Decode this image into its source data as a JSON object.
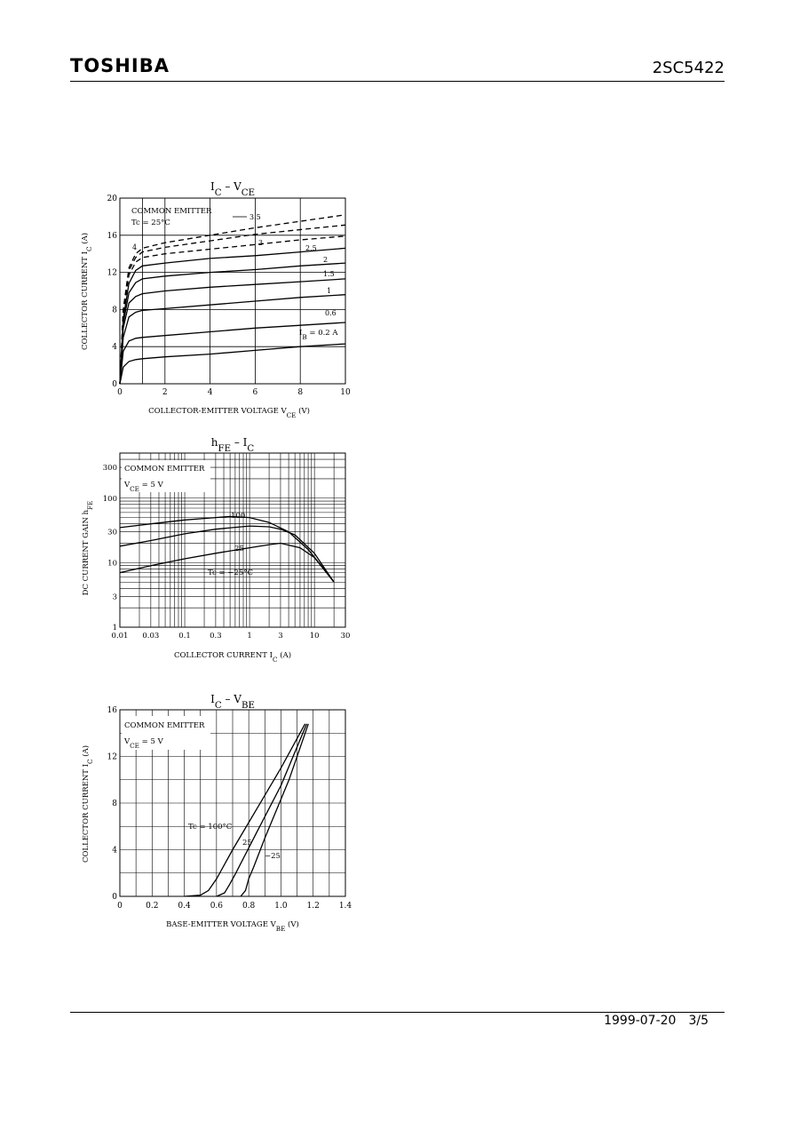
{
  "header": {
    "brand": "TOSHIBA",
    "part_number": "2SC5422"
  },
  "footer": {
    "date": "1999-07-20",
    "page": "3/5"
  },
  "chart_data": [
    {
      "type": "line",
      "title": "I_C – V_CE",
      "title_main": "I",
      "title_sub": "C",
      "title_mid": " − V",
      "title_sub2": "CE",
      "xlabel": "COLLECTOR-EMITTER VOLTAGE   V_CE   (V)",
      "ylabel": "COLLECTOR CURRENT   I_C   (A)",
      "xlim": [
        0,
        10
      ],
      "ylim": [
        0,
        20
      ],
      "xticks": [
        "0",
        "2",
        "4",
        "6",
        "8",
        "10"
      ],
      "yticks": [
        "0",
        "4",
        "8",
        "12",
        "16",
        "20"
      ],
      "grid": true,
      "annotations": [
        "COMMON EMITTER",
        "Tc = 25°C"
      ],
      "series": [
        {
          "name": "3.5",
          "dashed": true,
          "x": [
            0,
            0.15,
            0.4,
            0.7,
            1.0,
            2,
            4,
            6,
            8,
            10
          ],
          "y": [
            0,
            8,
            12.5,
            14,
            14.6,
            15.2,
            16.0,
            16.8,
            17.5,
            18.2
          ]
        },
        {
          "name": "3",
          "dashed": true,
          "x": [
            0,
            0.15,
            0.4,
            0.7,
            1.0,
            2,
            4,
            6,
            8,
            10
          ],
          "y": [
            0,
            7.8,
            12.2,
            13.6,
            14.2,
            14.7,
            15.4,
            16.1,
            16.6,
            17.1
          ]
        },
        {
          "name": "2.5",
          "dashed": true,
          "x": [
            0,
            0.15,
            0.4,
            0.7,
            1.0,
            2,
            4,
            6,
            8,
            10
          ],
          "y": [
            0,
            7.5,
            11.7,
            13.1,
            13.6,
            14.0,
            14.5,
            15.0,
            15.5,
            15.9
          ]
        },
        {
          "name": "2",
          "x": [
            0,
            0.15,
            0.4,
            0.7,
            1.0,
            2,
            4,
            6,
            8,
            10
          ],
          "y": [
            0,
            7,
            10.8,
            12.2,
            12.7,
            13.0,
            13.5,
            13.8,
            14.2,
            14.6
          ]
        },
        {
          "name": "1.5",
          "x": [
            0,
            0.15,
            0.4,
            0.7,
            1.0,
            2,
            4,
            6,
            8,
            10
          ],
          "y": [
            0,
            6.5,
            9.8,
            10.9,
            11.3,
            11.6,
            12.0,
            12.3,
            12.7,
            13.0
          ]
        },
        {
          "name": "1",
          "x": [
            0,
            0.15,
            0.4,
            0.7,
            1.0,
            2,
            4,
            6,
            8,
            10
          ],
          "y": [
            0,
            6,
            8.7,
            9.4,
            9.7,
            10.0,
            10.4,
            10.7,
            11.0,
            11.3
          ]
        },
        {
          "name": "0.6",
          "x": [
            0,
            0.15,
            0.4,
            0.7,
            1.0,
            2,
            4,
            6,
            8,
            10
          ],
          "y": [
            0,
            5,
            7.2,
            7.7,
            7.9,
            8.1,
            8.5,
            8.9,
            9.3,
            9.6
          ]
        },
        {
          "name": "I_B = 0.2 A",
          "x": [
            0,
            0.15,
            0.4,
            0.7,
            1.0,
            2,
            4,
            6,
            8,
            10
          ],
          "y": [
            0,
            3.5,
            4.6,
            4.9,
            5.0,
            5.2,
            5.6,
            6.0,
            6.3,
            6.6
          ]
        },
        {
          "name": "",
          "x": [
            0,
            0.15,
            0.4,
            0.7,
            1.0,
            2,
            4,
            6,
            8,
            10
          ],
          "y": [
            0,
            1.8,
            2.4,
            2.6,
            2.7,
            2.9,
            3.2,
            3.6,
            4.0,
            4.3
          ]
        }
      ],
      "labels": [
        "4",
        "3.5",
        "3",
        "2.5",
        "2",
        "1.5",
        "1",
        "0.6"
      ]
    },
    {
      "type": "line",
      "title": "h_FE – I_C",
      "xlabel": "COLLECTOR CURRENT   I_C   (A)",
      "ylabel": "DC CURRENT GAIN   h_FE",
      "xscale": "log",
      "yscale": "log",
      "xlim": [
        0.01,
        30
      ],
      "ylim": [
        1,
        500
      ],
      "xticks": [
        "0.01",
        "0.03",
        "0.1",
        "0.3",
        "1",
        "3",
        "10",
        "30"
      ],
      "yticks": [
        "1",
        "3",
        "10",
        "30",
        "100",
        "300"
      ],
      "grid": true,
      "annotations": [
        "COMMON EMITTER",
        "V_CE = 5 V"
      ],
      "series": [
        {
          "name": "100",
          "x": [
            0.01,
            0.03,
            0.1,
            0.3,
            0.5,
            1,
            2,
            4,
            8,
            14,
            20
          ],
          "y": [
            35,
            40,
            46,
            50,
            52,
            50,
            42,
            30,
            16,
            8,
            5
          ]
        },
        {
          "name": "25",
          "x": [
            0.01,
            0.03,
            0.1,
            0.3,
            1,
            2,
            3,
            5,
            10,
            20
          ],
          "y": [
            18,
            22,
            28,
            33,
            37,
            36,
            33,
            27,
            14,
            5
          ]
        },
        {
          "name": "Tc = −25°C",
          "x": [
            0.01,
            0.03,
            0.1,
            0.3,
            1,
            2,
            3,
            6,
            10,
            20
          ],
          "y": [
            7,
            9,
            11.5,
            14,
            17,
            19,
            20,
            17,
            12,
            5
          ]
        }
      ]
    },
    {
      "type": "line",
      "title": "I_C – V_BE",
      "xlabel": "BASE-EMITTER VOLTAGE   V_BE   (V)",
      "ylabel": "COLLECTOR CURRENT   I_C   (A)",
      "xlim": [
        0,
        1.4
      ],
      "ylim": [
        0,
        16
      ],
      "xticks": [
        "0",
        "0.2",
        "0.4",
        "0.6",
        "0.8",
        "1.0",
        "1.2",
        "1.4"
      ],
      "yticks": [
        "0",
        "4",
        "8",
        "12",
        "16"
      ],
      "grid": true,
      "annotations": [
        "COMMON EMITTER",
        "V_CE = 5 V"
      ],
      "series": [
        {
          "name": "Tc = 100°C",
          "x": [
            0.4,
            0.5,
            0.55,
            0.6,
            0.7,
            0.85,
            1.0,
            1.15
          ],
          "y": [
            0,
            0.1,
            0.5,
            1.5,
            4,
            7.5,
            11,
            14.8
          ]
        },
        {
          "name": "25",
          "x": [
            0.6,
            0.65,
            0.68,
            0.72,
            0.85,
            1.0,
            1.16
          ],
          "y": [
            0,
            0.3,
            1,
            2,
            5.5,
            9.5,
            14.8
          ]
        },
        {
          "name": "−25",
          "x": [
            0.75,
            0.78,
            0.8,
            0.83,
            0.9,
            1.05,
            1.17
          ],
          "y": [
            0,
            0.5,
            1.5,
            2.5,
            5,
            10,
            14.8
          ]
        }
      ]
    }
  ]
}
